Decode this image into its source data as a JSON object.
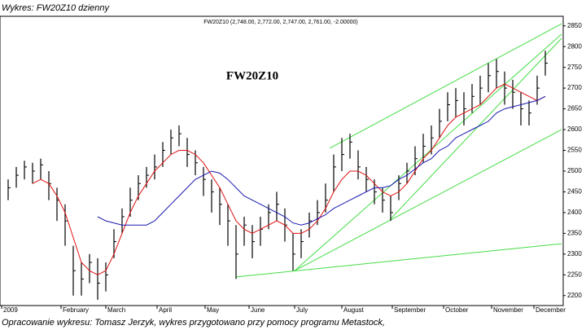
{
  "chart_data": {
    "type": "ohlc",
    "title": "Wykres: FW20Z10 dzienny",
    "subtitle": "FW20Z10 (2,748.00, 2,772.00, 2,747.00, 2,761.00, -2.00000)",
    "annotation": "FW20Z10",
    "caption": "Opracowanie wykresu: Tomasz Jerzyk, wykres przygotowano przy pomocy programu Metastock,",
    "xlim": [
      0,
      69.2
    ],
    "xticks": [
      {
        "value": 0.2,
        "label": "2009"
      },
      {
        "value": 7.5,
        "label": "February"
      },
      {
        "value": 13,
        "label": "March"
      },
      {
        "value": 19.3,
        "label": "April"
      },
      {
        "value": 25.2,
        "label": "May"
      },
      {
        "value": 30.6,
        "label": "June"
      },
      {
        "value": 36.2,
        "label": "July"
      },
      {
        "value": 42,
        "label": "August"
      },
      {
        "value": 48.2,
        "label": "September"
      },
      {
        "value": 54.5,
        "label": "October"
      },
      {
        "value": 60.4,
        "label": "November"
      },
      {
        "value": 65.6,
        "label": "December"
      }
    ],
    "ylim": [
      2176,
      2873
    ],
    "yticks": [
      2200,
      2250,
      2300,
      2350,
      2400,
      2450,
      2500,
      2550,
      2600,
      2650,
      2700,
      2750,
      2800,
      2850
    ],
    "x": [
      1,
      2,
      3,
      4,
      5,
      6,
      7,
      8,
      9,
      10,
      11,
      12,
      13,
      14,
      15,
      16,
      17,
      18,
      19,
      20,
      21,
      22,
      23,
      24,
      25,
      26,
      27,
      28,
      29,
      30,
      31,
      32,
      33,
      34,
      35,
      36,
      37,
      38,
      39,
      40,
      41,
      42,
      43,
      44,
      45,
      46,
      47,
      48,
      49,
      50,
      51,
      52,
      53,
      54,
      55,
      56,
      57,
      58,
      59,
      60,
      61,
      62,
      63,
      64,
      65,
      66,
      67
    ],
    "series": [
      {
        "type": "ohlc",
        "color": "#000000",
        "high": [
          2480,
          2510,
          2525,
          2520,
          2530,
          2500,
          2460,
          2420,
          2320,
          2280,
          2300,
          2290,
          2280,
          2360,
          2410,
          2460,
          2490,
          2510,
          2540,
          2570,
          2600,
          2610,
          2580,
          2550,
          2510,
          2480,
          2460,
          2420,
          2370,
          2390,
          2370,
          2390,
          2420,
          2450,
          2410,
          2350,
          2360,
          2400,
          2430,
          2470,
          2540,
          2580,
          2590,
          2550,
          2510,
          2480,
          2460,
          2440,
          2490,
          2520,
          2560,
          2590,
          2610,
          2650,
          2690,
          2700,
          2690,
          2710,
          2730,
          2760,
          2770,
          2740,
          2720,
          2690,
          2670,
          2730,
          2790
        ],
        "low": [
          2430,
          2460,
          2480,
          2470,
          2480,
          2430,
          2380,
          2320,
          2200,
          2200,
          2230,
          2190,
          2210,
          2290,
          2350,
          2390,
          2430,
          2460,
          2480,
          2510,
          2540,
          2560,
          2510,
          2490,
          2440,
          2400,
          2370,
          2320,
          2240,
          2320,
          2290,
          2320,
          2360,
          2380,
          2330,
          2260,
          2290,
          2340,
          2370,
          2400,
          2450,
          2500,
          2530,
          2480,
          2450,
          2420,
          2400,
          2380,
          2430,
          2470,
          2490,
          2520,
          2540,
          2580,
          2620,
          2630,
          2610,
          2640,
          2660,
          2690,
          2700,
          2660,
          2650,
          2610,
          2610,
          2660,
          2730
        ],
        "close": [
          2460,
          2490,
          2510,
          2500,
          2515,
          2470,
          2430,
          2380,
          2260,
          2240,
          2280,
          2230,
          2250,
          2330,
          2390,
          2430,
          2470,
          2490,
          2510,
          2550,
          2580,
          2590,
          2540,
          2520,
          2480,
          2450,
          2420,
          2380,
          2300,
          2370,
          2330,
          2360,
          2400,
          2420,
          2370,
          2300,
          2330,
          2380,
          2400,
          2430,
          2510,
          2540,
          2570,
          2510,
          2480,
          2450,
          2430,
          2400,
          2470,
          2500,
          2530,
          2560,
          2580,
          2620,
          2660,
          2670,
          2650,
          2680,
          2700,
          2730,
          2740,
          2700,
          2690,
          2650,
          2640,
          2700,
          2760
        ]
      },
      {
        "type": "line",
        "color": "#e01010",
        "values": [
          null,
          null,
          null,
          2470,
          2480,
          2470,
          2440,
          2400,
          2340,
          2280,
          2260,
          2250,
          2260,
          2300,
          2350,
          2400,
          2440,
          2470,
          2500,
          2520,
          2540,
          2550,
          2550,
          2540,
          2520,
          2490,
          2460,
          2420,
          2380,
          2360,
          2350,
          2360,
          2370,
          2380,
          2370,
          2350,
          2350,
          2360,
          2380,
          2410,
          2450,
          2480,
          2500,
          2500,
          2490,
          2470,
          2450,
          2440,
          2450,
          2470,
          2500,
          2530,
          2550,
          2580,
          2610,
          2630,
          2640,
          2650,
          2660,
          2680,
          2700,
          2710,
          2700,
          2690,
          2680,
          2670,
          2680
        ]
      },
      {
        "type": "line",
        "color": "#1818b0",
        "values": [
          null,
          null,
          null,
          null,
          null,
          null,
          null,
          null,
          null,
          null,
          null,
          2390,
          2380,
          2375,
          2370,
          2370,
          2370,
          2370,
          2380,
          2400,
          2420,
          2440,
          2460,
          2480,
          2490,
          2500,
          2495,
          2480,
          2460,
          2440,
          2430,
          2420,
          2410,
          2400,
          2390,
          2375,
          2370,
          2375,
          2385,
          2395,
          2410,
          2420,
          2430,
          2440,
          2450,
          2460,
          2460,
          2465,
          2480,
          2490,
          2505,
          2520,
          2530,
          2550,
          2560,
          2580,
          2590,
          2600,
          2610,
          2620,
          2640,
          2650,
          2655,
          2660,
          2665,
          2670,
          2680
        ]
      }
    ],
    "trendlines": {
      "color": "#44dd44",
      "lines": [
        {
          "x": [
            29,
            69
          ],
          "y": [
            2245,
            2325
          ]
        },
        {
          "x": [
            36.2,
            69
          ],
          "y": [
            2260,
            2600
          ]
        },
        {
          "x": [
            36.2,
            69
          ],
          "y": [
            2260,
            2830
          ]
        },
        {
          "x": [
            40.5,
            69
          ],
          "y": [
            2555,
            2855
          ]
        },
        {
          "x": [
            48,
            69
          ],
          "y": [
            2385,
            2820
          ]
        }
      ]
    }
  }
}
